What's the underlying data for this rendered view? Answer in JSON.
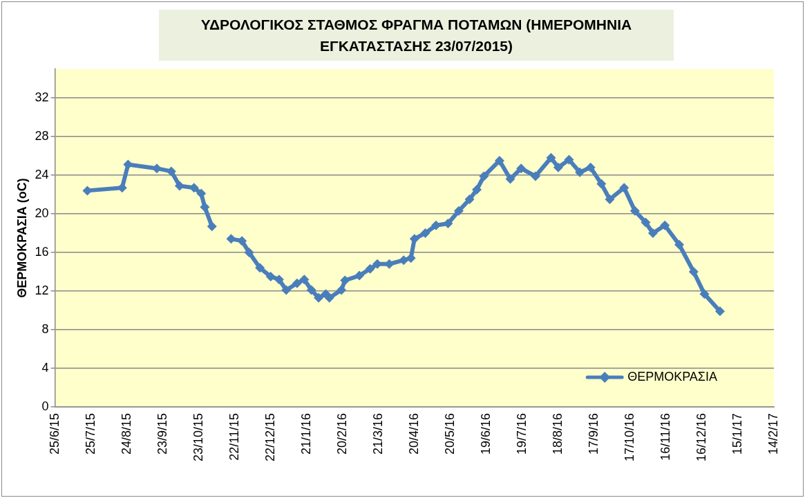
{
  "chart_data": {
    "type": "line",
    "title": "ΥΔΡΟΛΟΓΙΚΟΣ ΣΤΑΘΜΟΣ ΦΡΑΓΜΑ ΠΟΤΑΜΩΝ (ΗΜΕΡΟΜΗΝΙΑ ΕΓΚΑΤΑΣΤΑΣΗΣ 23/07/2015)",
    "ylabel": "ΘΕΡΜΟΚΡΑΣΙΑ (oC)",
    "x": [
      "2015-07-22",
      "2015-08-20",
      "2015-08-25",
      "2015-09-18",
      "2015-09-30",
      "2015-10-07",
      "2015-10-19",
      "2015-10-25",
      "2015-10-28",
      "2015-11-03",
      "2015-11-11",
      "2015-11-19",
      "2015-11-28",
      "2015-12-04",
      "2015-12-13",
      "2015-12-22",
      "2015-12-29",
      "2016-01-04",
      "2016-01-13",
      "2016-01-19",
      "2016-01-25",
      "2016-01-31",
      "2016-02-06",
      "2016-02-09",
      "2016-02-19",
      "2016-02-22",
      "2016-03-05",
      "2016-03-14",
      "2016-03-20",
      "2016-03-30",
      "2016-04-11",
      "2016-04-17",
      "2016-04-20",
      "2016-04-29",
      "2016-05-08",
      "2016-05-18",
      "2016-05-27",
      "2016-06-05",
      "2016-06-11",
      "2016-06-17",
      "2016-06-30",
      "2016-07-09",
      "2016-07-18",
      "2016-07-30",
      "2016-08-12",
      "2016-08-18",
      "2016-08-27",
      "2016-09-05",
      "2016-09-14",
      "2016-09-23",
      "2016-09-30",
      "2016-10-12",
      "2016-10-21",
      "2016-10-30",
      "2016-11-05",
      "2016-11-15",
      "2016-11-27",
      "2016-12-09",
      "2016-12-18",
      "2016-12-31"
    ],
    "series": [
      {
        "name": "ΘΕΡΜΟΚΡΑΣΙΑ",
        "color": "#4a7ebb",
        "values": [
          22.4,
          22.7,
          25.1,
          24.7,
          24.4,
          22.9,
          22.7,
          22.1,
          20.7,
          18.7,
          null,
          17.4,
          17.2,
          16.0,
          14.4,
          13.5,
          13.2,
          12.1,
          12.8,
          13.2,
          12.1,
          11.3,
          11.7,
          11.3,
          12.1,
          13.1,
          13.6,
          14.3,
          14.8,
          14.8,
          15.2,
          15.4,
          17.4,
          18.0,
          18.8,
          19.0,
          20.3,
          21.5,
          22.5,
          23.9,
          25.5,
          23.6,
          24.7,
          23.9,
          25.8,
          24.8,
          25.6,
          24.3,
          24.8,
          23.1,
          21.5,
          22.7,
          20.3,
          19.1,
          18.0,
          18.8,
          16.8,
          14.0,
          11.7,
          9.9
        ]
      }
    ],
    "xlim": [
      "2015-06-25",
      "2017-02-14"
    ],
    "xticks": [
      {
        "value": "2015-06-25",
        "label": "25/6/15"
      },
      {
        "value": "2015-07-25",
        "label": "25/7/15"
      },
      {
        "value": "2015-08-24",
        "label": "24/8/15"
      },
      {
        "value": "2015-09-23",
        "label": "23/9/15"
      },
      {
        "value": "2015-10-23",
        "label": "23/10/15"
      },
      {
        "value": "2015-11-22",
        "label": "22/11/15"
      },
      {
        "value": "2015-12-22",
        "label": "22/12/15"
      },
      {
        "value": "2016-01-21",
        "label": "21/1/16"
      },
      {
        "value": "2016-02-20",
        "label": "20/2/16"
      },
      {
        "value": "2016-03-21",
        "label": "21/3/16"
      },
      {
        "value": "2016-04-20",
        "label": "20/4/16"
      },
      {
        "value": "2016-05-20",
        "label": "20/5/16"
      },
      {
        "value": "2016-06-19",
        "label": "19/6/16"
      },
      {
        "value": "2016-07-19",
        "label": "19/7/16"
      },
      {
        "value": "2016-08-18",
        "label": "18/8/16"
      },
      {
        "value": "2016-09-17",
        "label": "17/9/16"
      },
      {
        "value": "2016-10-17",
        "label": "17/10/16"
      },
      {
        "value": "2016-11-16",
        "label": "16/11/16"
      },
      {
        "value": "2016-12-16",
        "label": "16/12/16"
      },
      {
        "value": "2017-01-15",
        "label": "15/1/17"
      },
      {
        "value": "2017-02-14",
        "label": "14/2/17"
      }
    ],
    "ylim": [
      0,
      35
    ],
    "yticks": [
      0,
      4,
      8,
      12,
      16,
      20,
      24,
      28,
      32
    ],
    "grid": "y",
    "legend": "bottom right",
    "marker": "diamond",
    "line_style": "solid"
  }
}
